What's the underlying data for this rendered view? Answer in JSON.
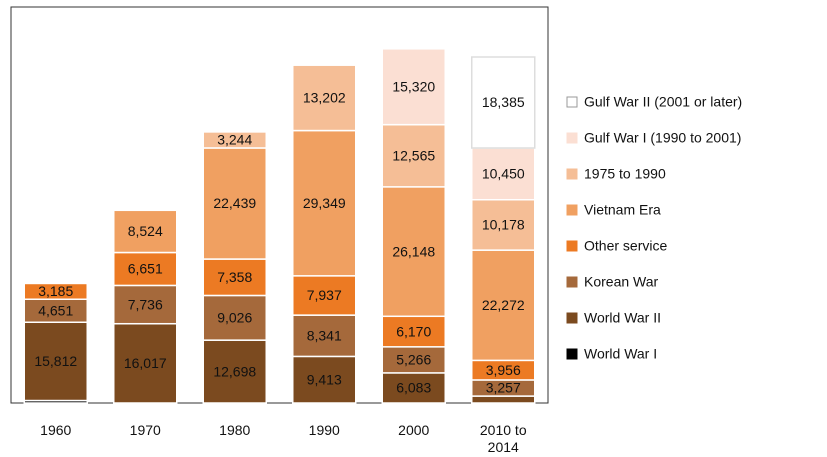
{
  "chart_data": {
    "type": "stacked_bar",
    "categories": [
      "1960",
      "1970",
      "1980",
      "1990",
      "2000",
      "2010 to 2014"
    ],
    "ylim": [
      0,
      80000
    ],
    "legend": "right",
    "series": [
      {
        "name": "World War I",
        "color": "#000000",
        "values": [
          500,
          null,
          null,
          null,
          null,
          null
        ],
        "value_labels": [
          null,
          null,
          null,
          null,
          null,
          null
        ]
      },
      {
        "name": "World War II",
        "color": "#7b4a1f",
        "values": [
          15812,
          16017,
          12698,
          9413,
          6083,
          1400
        ],
        "value_labels": [
          "15,812",
          "16,017",
          "12,698",
          "9,413",
          "6,083",
          null
        ]
      },
      {
        "name": "Korean War",
        "color": "#a5693b",
        "values": [
          4651,
          7736,
          9026,
          8341,
          5266,
          3257
        ],
        "value_labels": [
          "4,651",
          "7,736",
          "9,026",
          "8,341",
          "5,266",
          "3,257"
        ]
      },
      {
        "name": "Other service",
        "color": "#ec7a23",
        "values": [
          3185,
          6651,
          7358,
          7937,
          6170,
          3956
        ],
        "value_labels": [
          "3,185",
          "6,651",
          "7,358",
          "7,937",
          "6,170",
          "3,956"
        ]
      },
      {
        "name": "Vietnam Era",
        "color": "#f0a061",
        "values": [
          null,
          8524,
          22439,
          29349,
          26148,
          22272
        ],
        "value_labels": [
          null,
          "8,524",
          "22,439",
          "29,349",
          "26,148",
          "22,272"
        ]
      },
      {
        "name": "1975 to 1990",
        "color": "#f5be96",
        "values": [
          null,
          null,
          3244,
          13202,
          12565,
          10178
        ],
        "value_labels": [
          null,
          null,
          "3,244",
          "13,202",
          "12,565",
          "10,178"
        ]
      },
      {
        "name": "Gulf War I (1990 to 2001)",
        "color": "#fbdfd3",
        "values": [
          null,
          null,
          null,
          null,
          15320,
          10450
        ],
        "value_labels": [
          null,
          null,
          null,
          null,
          "15,320",
          "10,450"
        ]
      },
      {
        "name": "Gulf War II (2001 or later)",
        "color": "#ffffff",
        "values": [
          null,
          null,
          null,
          null,
          null,
          18385
        ],
        "value_labels": [
          null,
          null,
          null,
          null,
          null,
          "18,385"
        ]
      }
    ]
  }
}
